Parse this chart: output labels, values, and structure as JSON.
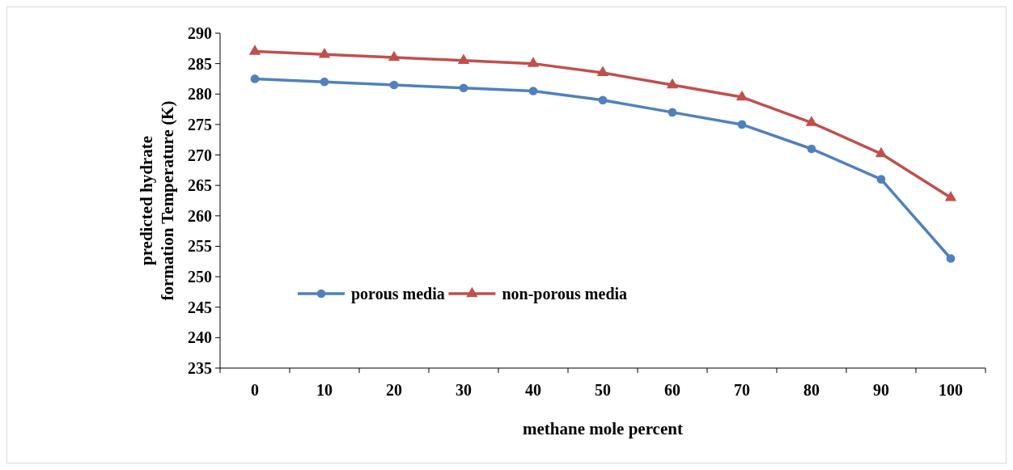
{
  "chart_data": {
    "type": "line",
    "xlabel": "methane mole percent",
    "ylabel": "predicted hydrate\nformation Temperature (K)",
    "categories": [
      "0",
      "10",
      "20",
      "30",
      "40",
      "50",
      "60",
      "70",
      "80",
      "90",
      "100"
    ],
    "series": [
      {
        "name": "porous media",
        "color": "#4f81bd",
        "marker": "circle",
        "values": [
          282.5,
          282,
          281.5,
          281,
          280.5,
          279,
          277,
          275,
          271,
          266,
          253
        ]
      },
      {
        "name": "non-porous media",
        "color": "#c0504d",
        "marker": "triangle",
        "values": [
          287,
          286.5,
          286,
          285.5,
          285,
          283.5,
          281.5,
          279.5,
          275.3,
          270.2,
          263
        ]
      }
    ],
    "ylim": [
      235,
      290
    ],
    "yticks": [
      235,
      240,
      245,
      250,
      255,
      260,
      265,
      270,
      275,
      280,
      285,
      290
    ],
    "grid": false,
    "legend": "left"
  }
}
